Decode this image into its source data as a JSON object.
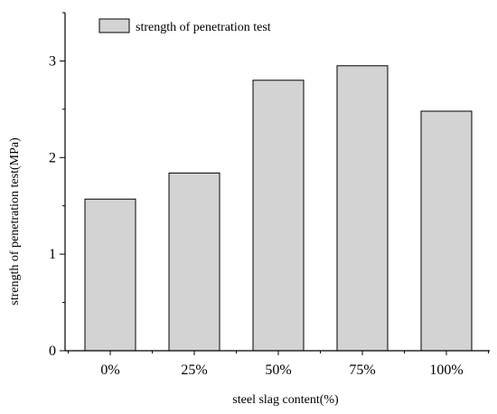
{
  "chart_data": {
    "type": "bar",
    "title": "",
    "xlabel": "steel slag content(%)",
    "ylabel": "strength of penetration test(MPa)",
    "categories": [
      "0%",
      "25%",
      "50%",
      "75%",
      "100%"
    ],
    "series": [
      {
        "name": "strength of penetration test",
        "values": [
          1.57,
          1.84,
          2.8,
          2.95,
          2.48
        ]
      }
    ],
    "ylim": [
      0,
      3.5
    ],
    "yticks": [
      "0",
      "1",
      "2",
      "3"
    ],
    "grid": false,
    "legend_position": "top-left",
    "bar_color": "#d3d3d3",
    "bar_edge_color": "#000000"
  }
}
